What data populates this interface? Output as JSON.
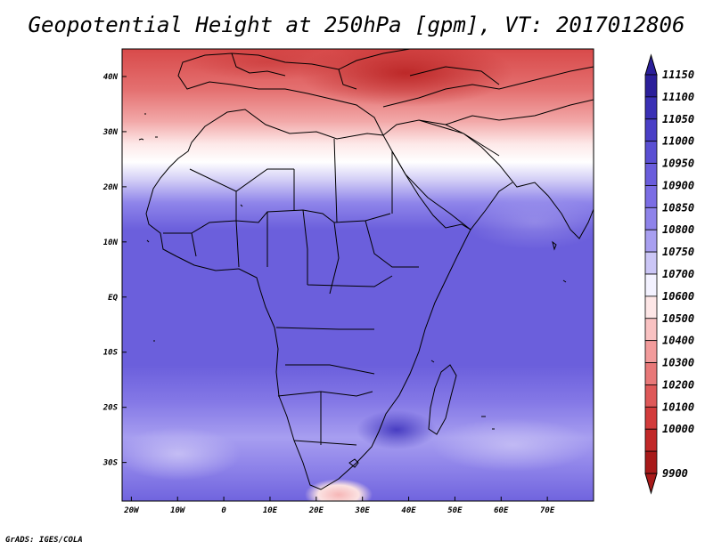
{
  "title": "Geopotential Height at 250hPa [gpm], VT: 2017012806",
  "footer": "GrADS: IGES/COLA",
  "map": {
    "lon_range": [
      -22,
      80
    ],
    "lat_range": [
      -37,
      45
    ],
    "x_ticks": [
      {
        "lon": -20,
        "label": "20W"
      },
      {
        "lon": -10,
        "label": "10W"
      },
      {
        "lon": 0,
        "label": "0"
      },
      {
        "lon": 10,
        "label": "10E"
      },
      {
        "lon": 20,
        "label": "20E"
      },
      {
        "lon": 30,
        "label": "30E"
      },
      {
        "lon": 40,
        "label": "40E"
      },
      {
        "lon": 50,
        "label": "50E"
      },
      {
        "lon": 60,
        "label": "60E"
      },
      {
        "lon": 70,
        "label": "70E"
      }
    ],
    "y_ticks": [
      {
        "lat": 40,
        "label": "40N"
      },
      {
        "lat": 30,
        "label": "30N"
      },
      {
        "lat": 20,
        "label": "20N"
      },
      {
        "lat": 10,
        "label": "10N"
      },
      {
        "lat": 0,
        "label": "EQ"
      },
      {
        "lat": -10,
        "label": "10S"
      },
      {
        "lat": -20,
        "label": "20S"
      },
      {
        "lat": -30,
        "label": "30S"
      }
    ]
  },
  "colorbar": {
    "levels": [
      "11150",
      "11100",
      "11050",
      "11000",
      "10950",
      "10900",
      "10850",
      "10800",
      "10750",
      "10700",
      "10600",
      "10500",
      "10400",
      "10300",
      "10200",
      "10100",
      "10000",
      "9900"
    ],
    "colors": [
      "#2b1f9a",
      "#3a30b5",
      "#4a3fc6",
      "#5a4fd3",
      "#6a5ddc",
      "#7b6de4",
      "#8e83ea",
      "#a89ff0",
      "#cbc6f6",
      "#f3f2ff",
      "#fde6e6",
      "#f9c2c2",
      "#f29b9b",
      "#e87878",
      "#de5858",
      "#d23b3b",
      "#c12828",
      "#a81a1a"
    ]
  }
}
